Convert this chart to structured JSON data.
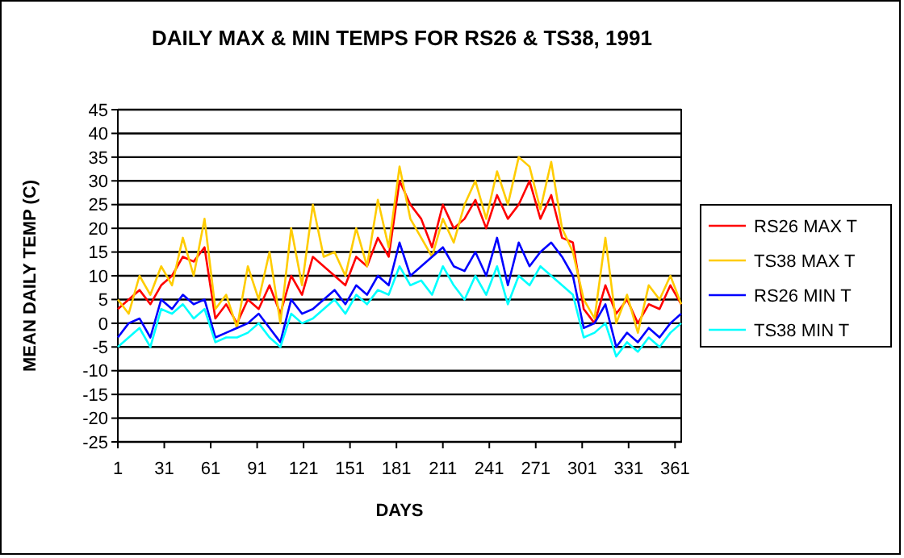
{
  "chart_data": {
    "type": "line",
    "title": "DAILY MAX & MIN TEMPS FOR RS26 & TS38, 1991",
    "xlabel": "DAYS",
    "ylabel": "MEAN DAILY TEMP (C)",
    "x": [
      1,
      8,
      15,
      22,
      29,
      36,
      43,
      50,
      57,
      64,
      71,
      78,
      85,
      92,
      99,
      106,
      113,
      120,
      127,
      134,
      141,
      148,
      155,
      162,
      169,
      176,
      183,
      190,
      197,
      204,
      211,
      218,
      225,
      232,
      239,
      246,
      253,
      260,
      267,
      274,
      281,
      288,
      295,
      302,
      309,
      316,
      323,
      330,
      337,
      344,
      351,
      358,
      365
    ],
    "xlim": [
      1,
      365
    ],
    "xticks": [
      1,
      31,
      61,
      91,
      121,
      151,
      181,
      211,
      241,
      271,
      301,
      331,
      361
    ],
    "ylim": [
      -25,
      45
    ],
    "yticks": [
      -25,
      -20,
      -15,
      -10,
      -5,
      0,
      5,
      10,
      15,
      20,
      25,
      30,
      35,
      40,
      45
    ],
    "grid": "y",
    "legend": "right",
    "marker": "none",
    "line_style": "solid",
    "series": [
      {
        "name": "RS26 MAX T",
        "color": "#ff0000",
        "values": [
          3,
          5,
          7,
          4,
          8,
          10,
          14,
          13,
          16,
          1,
          4,
          0,
          5,
          3,
          8,
          2,
          10,
          6,
          14,
          12,
          10,
          8,
          14,
          12,
          18,
          14,
          30,
          25,
          22,
          16,
          25,
          20,
          22,
          26,
          20,
          27,
          22,
          25,
          30,
          22,
          27,
          18,
          17,
          3,
          0,
          8,
          2,
          5,
          0,
          4,
          3,
          8,
          4
        ]
      },
      {
        "name": "TS38 MAX T",
        "color": "#ffcc00",
        "values": [
          5,
          2,
          10,
          6,
          12,
          8,
          18,
          10,
          22,
          3,
          6,
          -1,
          12,
          5,
          15,
          0,
          20,
          8,
          25,
          14,
          15,
          10,
          20,
          12,
          26,
          16,
          33,
          22,
          18,
          14,
          22,
          17,
          25,
          30,
          22,
          32,
          25,
          35,
          33,
          24,
          34,
          20,
          15,
          5,
          1,
          18,
          0,
          6,
          -2,
          8,
          5,
          10,
          4
        ]
      },
      {
        "name": "RS26 MIN T",
        "color": "#0000ff",
        "values": [
          -3,
          0,
          1,
          -3,
          5,
          3,
          6,
          4,
          5,
          -3,
          -2,
          -1,
          0,
          2,
          -1,
          -4,
          5,
          2,
          3,
          5,
          7,
          4,
          8,
          6,
          10,
          8,
          17,
          10,
          12,
          14,
          16,
          12,
          11,
          15,
          10,
          18,
          8,
          17,
          12,
          15,
          17,
          14,
          10,
          -1,
          0,
          4,
          -5,
          -2,
          -4,
          -1,
          -3,
          0,
          2
        ]
      },
      {
        "name": "TS38 MIN T",
        "color": "#00ffff",
        "values": [
          -5,
          -3,
          -1,
          -5,
          3,
          2,
          4,
          1,
          3,
          -4,
          -3,
          -3,
          -2,
          0,
          -3,
          -5,
          2,
          0,
          1,
          3,
          5,
          2,
          6,
          4,
          7,
          6,
          12,
          8,
          9,
          6,
          12,
          8,
          5,
          10,
          6,
          12,
          4,
          10,
          8,
          12,
          10,
          8,
          6,
          -3,
          -2,
          0,
          -7,
          -4,
          -6,
          -3,
          -5,
          -2,
          0
        ]
      }
    ]
  }
}
